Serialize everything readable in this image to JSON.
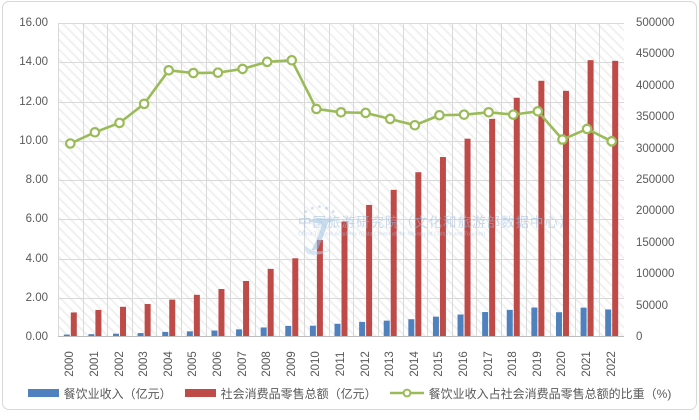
{
  "chart_data": {
    "type": "bar",
    "title": "",
    "categories": [
      "2000",
      "2001",
      "2002",
      "2003",
      "2004",
      "2005",
      "2006",
      "2007",
      "2008",
      "2009",
      "2010",
      "2011",
      "2012",
      "2013",
      "2014",
      "2015",
      "2016",
      "2017",
      "2018",
      "2019",
      "2020",
      "2021",
      "2022"
    ],
    "series": [
      {
        "name": "餐饮业收入（亿元）",
        "type": "bar",
        "axis": "right",
        "color": "#4e81bd",
        "values": [
          3856,
          4491,
          5252,
          6239,
          8086,
          9035,
          10292,
          12186,
          15210,
          17673,
          17959,
          21059,
          24017,
          26040,
          28312,
          32384,
          35781,
          39769,
          43166,
          46922,
          39433,
          46727,
          43841
        ]
      },
      {
        "name": "社会消费品零售总额（亿元）",
        "type": "bar",
        "axis": "right",
        "color": "#be4b48",
        "values": [
          39106,
          43055,
          48136,
          52516,
          59501,
          67177,
          76410,
          89210,
          108488,
          125343,
          154554,
          183919,
          210307,
          234380,
          262394,
          286588,
          315806,
          347327,
          380987,
          408017,
          391981,
          440823,
          439733
        ]
      },
      {
        "name": "餐饮业收入占社会消费品零售总额的比重（%)",
        "type": "line",
        "axis": "left",
        "color": "#9bbb59",
        "marker": "circle",
        "values": [
          9.86,
          10.43,
          10.91,
          11.88,
          13.59,
          13.45,
          13.47,
          13.66,
          14.02,
          14.1,
          11.62,
          11.45,
          11.42,
          11.11,
          10.79,
          11.3,
          11.33,
          11.45,
          11.33,
          11.5,
          10.06,
          10.6,
          9.97
        ]
      }
    ],
    "left_axis": {
      "min": 0,
      "max": 16,
      "tick_step": 2,
      "tick_labels": [
        "16.00",
        "14.00",
        "12.00",
        "10.00",
        "8.00",
        "6.00",
        "4.00",
        "2.00",
        "0.00"
      ]
    },
    "right_axis": {
      "min": 0,
      "max": 500000,
      "tick_step": 50000,
      "tick_labels": [
        "500000",
        "450000",
        "400000",
        "350000",
        "300000",
        "250000",
        "200000",
        "150000",
        "100000",
        "50000",
        "0"
      ]
    },
    "grid": true,
    "plot_background": "diagonal-hatch",
    "legend_position": "bottom",
    "x_tick_rotation": 90
  },
  "legend": [
    {
      "label": "餐饮业收入（亿元）",
      "marker": "bar",
      "color": "#4e81bd"
    },
    {
      "label": "社会消费品零售总额（亿元）",
      "marker": "bar",
      "color": "#be4b48"
    },
    {
      "label": "餐饮业收入占社会消费品零售总额的比重（%)",
      "marker": "line-circle",
      "color": "#9bbb59"
    }
  ],
  "watermark": {
    "line1": "中国旅游研究院（文化和旅游部数据中心）",
    "line2": "China Tourism Academy (Data Center of the Ministry of Culture and Tourism)",
    "logo": "cta-star-seven-logo"
  },
  "colors": {
    "catering_bar": "#4e81bd",
    "retail_bar": "#be4b48",
    "ratio_line": "#9bbb59",
    "axis_text": "#595959",
    "gridline": "#d9d9d9",
    "axis_line": "#bdbdbd",
    "chart_border": "#d8d8d8",
    "watermark_blue": "#a9c6e2"
  }
}
